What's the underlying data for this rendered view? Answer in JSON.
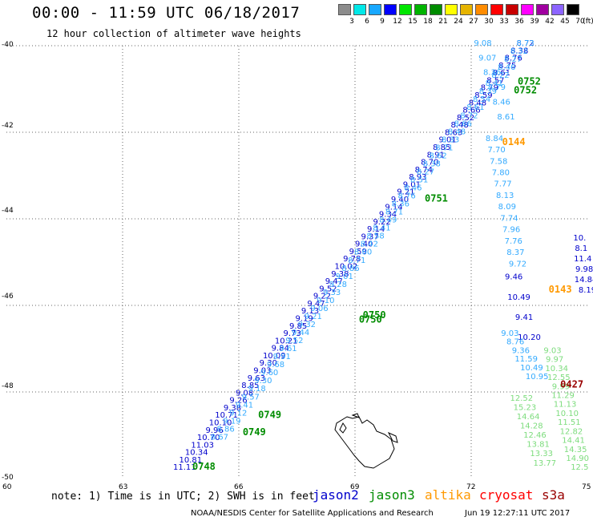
{
  "header": {
    "title": "00:00 - 11:59 UTC 06/18/2017",
    "subtitle": "12 hour collection of altimeter wave heights"
  },
  "legend": {
    "unit": "(ft)",
    "bins": [
      {
        "label": "3",
        "color": "#8c8c8c"
      },
      {
        "label": "6",
        "color": "#00e8e8"
      },
      {
        "label": "9",
        "color": "#19a8ff"
      },
      {
        "label": "12",
        "color": "#0000ff"
      },
      {
        "label": "15",
        "color": "#00e600"
      },
      {
        "label": "18",
        "color": "#00b400"
      },
      {
        "label": "21",
        "color": "#008c00"
      },
      {
        "label": "24",
        "color": "#ffff00"
      },
      {
        "label": "27",
        "color": "#e6b400"
      },
      {
        "label": "30",
        "color": "#ff8c00"
      },
      {
        "label": "33",
        "color": "#ff0000"
      },
      {
        "label": "36",
        "color": "#c80000"
      },
      {
        "label": "39",
        "color": "#ff00ff"
      },
      {
        "label": "42",
        "color": "#a000a0"
      },
      {
        "label": "45",
        "color": "#8c64ff"
      },
      {
        "label": "70",
        "color": "#000000"
      }
    ]
  },
  "axes": {
    "lat_labels": [
      "-40",
      "-42",
      "-44",
      "-46",
      "-48",
      "-50"
    ],
    "lon_labels": [
      "60",
      "63",
      "66",
      "69",
      "72",
      "75"
    ]
  },
  "colors": {
    "jason2": "#0000cc",
    "jason3": "#008c00",
    "altika": "#ff9900",
    "cryosat": "#ff0000",
    "s3a": "#cc0000",
    "light_green": "#7ddc7d",
    "light_blue": "#33aaff",
    "dark_red": "#990000"
  },
  "time_labels": [
    {
      "text": "0752",
      "lon": 73.2,
      "lat": -40.9,
      "sat": "jason3"
    },
    {
      "text": "0752",
      "lon": 73.1,
      "lat": -41.1,
      "sat": "jason3"
    },
    {
      "text": "0144",
      "lon": 72.8,
      "lat": -42.3,
      "sat": "altika"
    },
    {
      "text": "0751",
      "lon": 70.8,
      "lat": -43.6,
      "sat": "jason3"
    },
    {
      "text": "0750",
      "lon": 69.2,
      "lat": -46.3,
      "sat": "jason3"
    },
    {
      "text": "0750",
      "lon": 69.1,
      "lat": -46.4,
      "sat": "jason3"
    },
    {
      "text": "0143",
      "lon": 74.0,
      "lat": -45.7,
      "sat": "altika"
    },
    {
      "text": "0427",
      "lon": 74.3,
      "lat": -47.9,
      "sat": "s3a"
    },
    {
      "text": "0749",
      "lon": 66.5,
      "lat": -48.6,
      "sat": "jason3"
    },
    {
      "text": "0749",
      "lon": 66.1,
      "lat": -49.0,
      "sat": "jason3"
    },
    {
      "text": "0748",
      "lon": 64.8,
      "lat": -49.8,
      "sat": "jason3"
    }
  ],
  "wave_tracks": [
    {
      "sat": "jason2",
      "start": [
        64.6,
        -49.8
      ],
      "end": [
        73.4,
        -40.0
      ],
      "n": 58,
      "values": [
        "11.11",
        "10.81",
        "10.34",
        "11.03",
        "10.70",
        "9.96",
        "10.10",
        "10.71",
        "9.38",
        "9.26",
        "9.08",
        "8.85",
        "9.63",
        "9.03",
        "9.30",
        "10.09",
        "9.84",
        "10.21",
        "9.73",
        "9.85",
        "9.19",
        "9.13",
        "9.47",
        "9.22",
        "9.52",
        "9.47",
        "9.38",
        "10.02",
        "9.78",
        "9.59",
        "9.40",
        "9.37",
        "9.14",
        "9.22",
        "9.34",
        "9.14",
        "9.40",
        "9.21",
        "9.01",
        "8.93",
        "8.74",
        "8.70",
        "8.91",
        "8.85",
        "9.01",
        "8.63",
        "8.48",
        "8.52",
        "8.66",
        "8.48",
        "8.59",
        "8.79",
        "8.57",
        "8.61",
        "8.75",
        "8.76",
        "8.38",
        "8.72"
      ]
    },
    {
      "sat": "jason2_light",
      "start": [
        65.5,
        -49.1
      ],
      "end": [
        73.4,
        -40.0
      ],
      "n": 50,
      "values": [
        "8.67",
        "8.86",
        "9.19",
        "9.12",
        "9.41",
        "9.57",
        "9.18",
        "9.30",
        "9.60",
        "9.68",
        "9.91",
        "9.61",
        "9.52",
        "9.44",
        "9.32",
        "9.21",
        "9.06",
        "9.10",
        "9.33",
        "9.28",
        "9.01",
        "8.86",
        "8.71",
        "8.60",
        "8.42",
        "8.58",
        "8.41",
        "8.49",
        "8.71",
        "8.36",
        "8.76",
        "8.46",
        "8.51",
        "8.27",
        "8.38",
        "8.62",
        "8.71",
        "8.33",
        "8.48",
        "8.66",
        "8.72",
        "8.61",
        "8.54",
        "8.39",
        "8.41",
        "8.22",
        "8.46",
        "8.27",
        "8.32",
        "8.73"
      ]
    },
    {
      "sat": "altika_track",
      "start": [
        72.3,
        -40.0
      ],
      "end": [
        72.9,
        -41.7
      ],
      "n": 6,
      "values": [
        "9.08",
        "9.07",
        "8.36",
        "8.79",
        "8.46",
        "8.61"
      ]
    },
    {
      "sat": "altika_track2",
      "start": [
        72.6,
        -42.2
      ],
      "end": [
        73.2,
        -45.1
      ],
      "n": 12,
      "values": [
        "8.84",
        "7.70",
        "7.58",
        "7.80",
        "7.77",
        "8.13",
        "8.09",
        "7.74",
        "7.96",
        "7.76",
        "8.37",
        "9.72"
      ]
    },
    {
      "sat": "altika_dark",
      "start": [
        73.1,
        -45.4
      ],
      "end": [
        73.5,
        -46.8
      ],
      "n": 4,
      "values": [
        "9.46",
        "10.49",
        "9.41",
        "10.20"
      ]
    },
    {
      "sat": "altika_dark2",
      "start": [
        73.0,
        -46.7
      ],
      "end": [
        73.7,
        -47.7
      ],
      "n": 6,
      "values": [
        "9.03",
        "8.76",
        "9.36",
        "11.59",
        "10.49",
        "10.95"
      ]
    },
    {
      "sat": "cryo_light",
      "start": [
        73.3,
        -48.2
      ],
      "end": [
        73.9,
        -49.7
      ],
      "n": 8,
      "values": [
        "12.52",
        "15.23",
        "14.64",
        "14.28",
        "12.46",
        "13.81",
        "13.33",
        "13.77"
      ]
    },
    {
      "sat": "cryo_light2",
      "start": [
        74.1,
        -47.1
      ],
      "end": [
        74.8,
        -49.8
      ],
      "n": 14,
      "values": [
        "9.03",
        "9.97",
        "10.34",
        "12.55",
        "9.99",
        "11.29",
        "11.13",
        "10.10",
        "11.51",
        "12.82",
        "14.41",
        "14.35",
        "14.90",
        "12.5"
      ]
    },
    {
      "sat": "right_edge",
      "start": [
        74.8,
        -44.5
      ],
      "end": [
        75.0,
        -45.7
      ],
      "n": 6,
      "values": [
        "10.",
        "8.1",
        "11.4",
        "9.98",
        "14.84",
        "8.19"
      ]
    }
  ]
}
